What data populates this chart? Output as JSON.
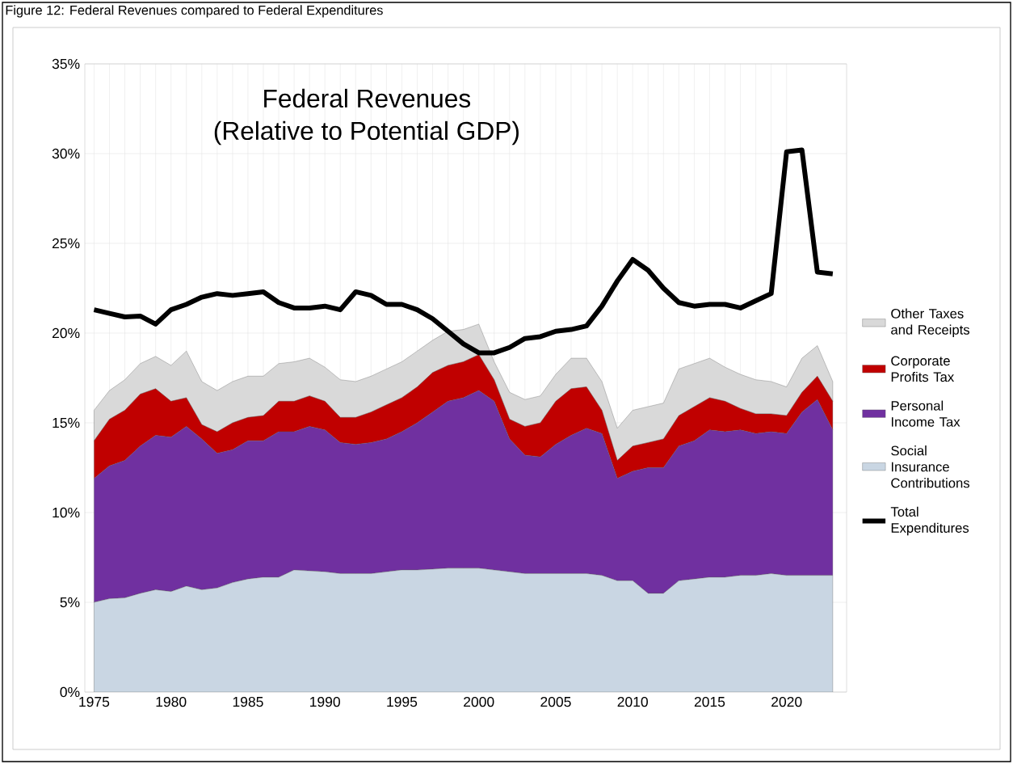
{
  "chart_data": {
    "type": "area",
    "stacked": true,
    "title": "Federal Revenues",
    "subtitle": "(Relative to Potential GDP)",
    "annotations": [
      "Figure 12: Federal Revenues compared to Federal Expenditures"
    ],
    "x": [
      1975,
      1976,
      1977,
      1978,
      1979,
      1980,
      1981,
      1982,
      1983,
      1984,
      1985,
      1986,
      1987,
      1988,
      1989,
      1990,
      1991,
      1992,
      1993,
      1994,
      1995,
      1996,
      1997,
      1998,
      1999,
      2000,
      2001,
      2002,
      2003,
      2004,
      2005,
      2006,
      2007,
      2008,
      2009,
      2010,
      2011,
      2012,
      2013,
      2014,
      2015,
      2016,
      2017,
      2018,
      2019,
      2020,
      2021,
      2022,
      2023
    ],
    "series": [
      {
        "name": "Social Insurance Contributions",
        "color": "#c9d6e3",
        "values": [
          5.0,
          5.2,
          5.25,
          5.5,
          5.7,
          5.6,
          5.9,
          5.7,
          5.8,
          6.1,
          6.3,
          6.4,
          6.4,
          6.8,
          6.75,
          6.7,
          6.6,
          6.6,
          6.6,
          6.7,
          6.8,
          6.8,
          6.85,
          6.9,
          6.9,
          6.9,
          6.8,
          6.7,
          6.6,
          6.6,
          6.6,
          6.6,
          6.6,
          6.5,
          6.2,
          6.2,
          5.5,
          5.5,
          6.2,
          6.3,
          6.4,
          6.4,
          6.5,
          6.5,
          6.6,
          6.5,
          6.5,
          6.5,
          6.5
        ]
      },
      {
        "name": "Personal Income Tax",
        "color": "#7030a0",
        "values": [
          6.9,
          7.4,
          7.65,
          8.2,
          8.6,
          8.6,
          8.9,
          8.4,
          7.5,
          7.4,
          7.7,
          7.6,
          8.1,
          7.7,
          8.05,
          7.9,
          7.3,
          7.2,
          7.3,
          7.4,
          7.7,
          8.2,
          8.75,
          9.3,
          9.5,
          9.9,
          9.4,
          7.4,
          6.6,
          6.5,
          7.2,
          7.7,
          8.1,
          7.9,
          5.7,
          6.1,
          7.0,
          7.0,
          7.5,
          7.7,
          8.2,
          8.1,
          8.1,
          7.9,
          7.9,
          7.9,
          9.1,
          9.8,
          8.1
        ]
      },
      {
        "name": "Corporate Profits Tax",
        "color": "#c00000",
        "values": [
          2.1,
          2.6,
          2.8,
          2.9,
          2.6,
          2.0,
          1.6,
          0.8,
          1.2,
          1.5,
          1.3,
          1.4,
          1.7,
          1.7,
          1.7,
          1.6,
          1.4,
          1.5,
          1.7,
          1.9,
          1.9,
          2.0,
          2.2,
          2.0,
          2.0,
          2.0,
          1.2,
          1.1,
          1.6,
          1.9,
          2.4,
          2.6,
          2.3,
          1.3,
          1.0,
          1.4,
          1.4,
          1.6,
          1.7,
          1.9,
          1.8,
          1.7,
          1.2,
          1.1,
          1.0,
          1.0,
          1.1,
          1.3,
          1.6
        ]
      },
      {
        "name": "Other Taxes and Receipts",
        "color": "#d9d9d9",
        "values": [
          1.7,
          1.6,
          1.7,
          1.7,
          1.8,
          2.0,
          2.6,
          2.4,
          2.3,
          2.3,
          2.3,
          2.2,
          2.1,
          2.2,
          2.1,
          1.9,
          2.1,
          2.0,
          2.0,
          2.0,
          2.0,
          2.0,
          1.8,
          1.9,
          1.8,
          1.7,
          1.0,
          1.5,
          1.5,
          1.5,
          1.5,
          1.7,
          1.6,
          1.6,
          1.8,
          2.0,
          2.0,
          2.0,
          2.6,
          2.4,
          2.2,
          1.9,
          1.9,
          1.9,
          1.8,
          1.6,
          1.9,
          1.7,
          1.1
        ]
      },
      {
        "name": "Total Expenditures",
        "type": "line",
        "color": "#000000",
        "values": [
          21.3,
          21.1,
          20.9,
          20.95,
          20.5,
          21.3,
          21.6,
          22.0,
          22.2,
          22.1,
          22.2,
          22.3,
          21.7,
          21.4,
          21.4,
          21.5,
          21.3,
          22.3,
          22.1,
          21.6,
          21.6,
          21.3,
          20.8,
          20.1,
          19.4,
          18.9,
          18.9,
          19.2,
          19.7,
          19.8,
          20.1,
          20.2,
          20.4,
          21.5,
          22.9,
          24.1,
          23.5,
          22.5,
          21.7,
          21.5,
          21.6,
          21.6,
          21.4,
          21.8,
          22.2,
          30.1,
          30.2,
          23.4,
          23.3
        ]
      }
    ],
    "xlim": [
      1974.4,
      2023.9
    ],
    "xticks": [
      1975,
      1980,
      1985,
      1990,
      1995,
      2000,
      2005,
      2010,
      2015,
      2020
    ],
    "ylim": [
      0,
      35
    ],
    "yticks": [
      {
        "value": 0,
        "label": "0%"
      },
      {
        "value": 5,
        "label": "5%"
      },
      {
        "value": 10,
        "label": "10%"
      },
      {
        "value": 15,
        "label": "15%"
      },
      {
        "value": 20,
        "label": "20%"
      },
      {
        "value": 25,
        "label": "25%"
      },
      {
        "value": 30,
        "label": "30%"
      },
      {
        "value": 35,
        "label": "35%"
      }
    ],
    "grid": true,
    "legend": "right"
  }
}
